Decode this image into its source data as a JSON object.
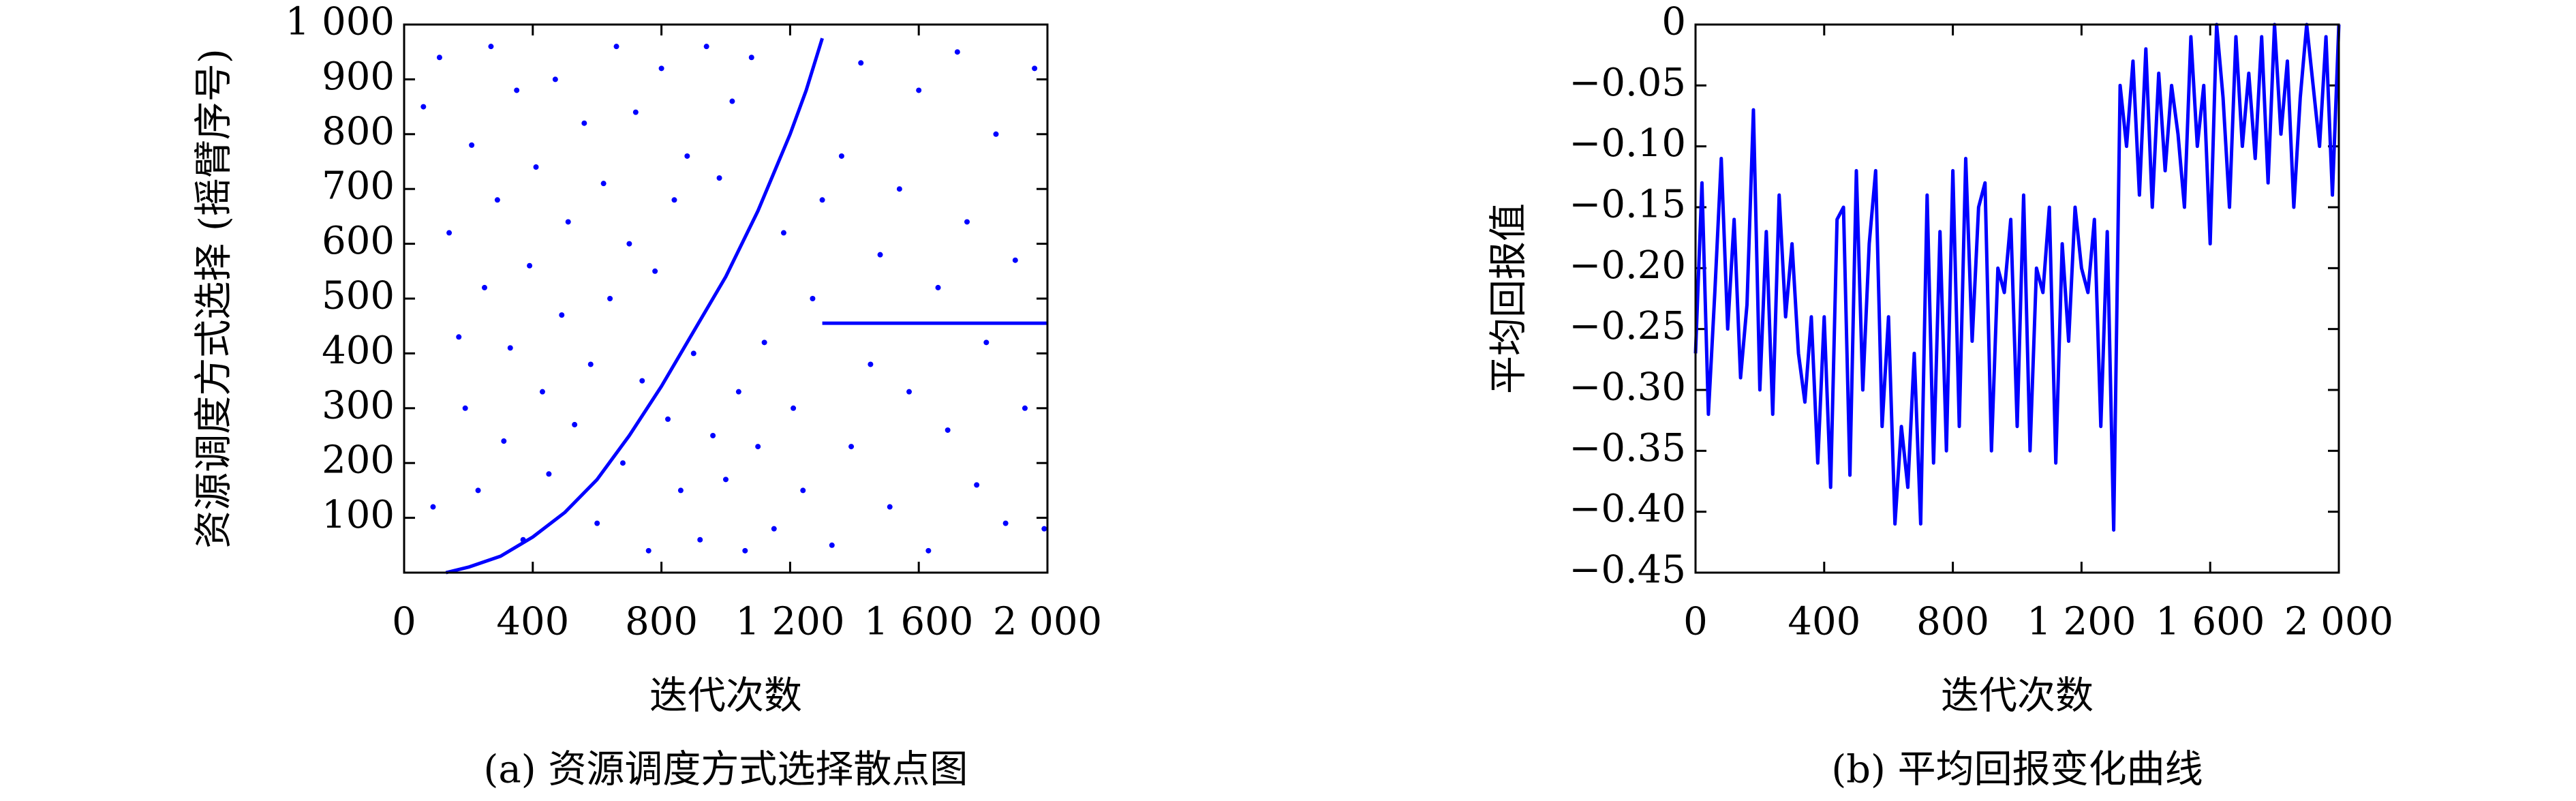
{
  "chart_data": [
    {
      "type": "scatter",
      "caption": "(a) 资源调度方式选择散点图",
      "xlabel": "迭代次数",
      "ylabel": "资源调度方式选择 (摇臂序号)",
      "xlim": [
        0,
        2000
      ],
      "xticks": [
        0,
        400,
        800,
        {
          "value": 1200,
          "label": "1 200"
        },
        {
          "value": 1600,
          "label": "1 600"
        },
        {
          "value": 2000,
          "label": "2 000"
        }
      ],
      "ylim": [
        0,
        1000
      ],
      "yticks": [
        100,
        200,
        300,
        400,
        500,
        600,
        700,
        800,
        900,
        {
          "value": 1000,
          "label": "1 000"
        }
      ],
      "series": [
        {
          "color": "#0000ff",
          "style": "dots",
          "x": [
            60,
            90,
            110,
            140,
            170,
            190,
            210,
            230,
            250,
            270,
            290,
            310,
            330,
            350,
            370,
            390,
            410,
            430,
            450,
            470,
            490,
            510,
            530,
            560,
            580,
            600,
            620,
            640,
            660,
            680,
            700,
            720,
            740,
            760,
            780,
            800,
            820,
            840,
            860,
            880,
            900,
            920,
            940,
            960,
            980,
            1000,
            1020,
            1040,
            1060,
            1080,
            1100,
            1120,
            1150,
            1180,
            1210,
            1240,
            1270,
            1300,
            1330,
            1360,
            1390,
            1420,
            1450,
            1480,
            1510,
            1540,
            1570,
            1600,
            1630,
            1660,
            1690,
            1720,
            1750,
            1780,
            1810,
            1840,
            1870,
            1900,
            1930,
            1960,
            1990
          ],
          "values": [
            850,
            120,
            940,
            620,
            430,
            300,
            780,
            150,
            520,
            960,
            680,
            240,
            410,
            880,
            60,
            560,
            740,
            330,
            180,
            900,
            470,
            640,
            270,
            820,
            380,
            90,
            710,
            500,
            960,
            200,
            600,
            840,
            350,
            40,
            550,
            920,
            280,
            680,
            150,
            760,
            400,
            60,
            960,
            250,
            720,
            170,
            860,
            330,
            40,
            940,
            230,
            420,
            80,
            620,
            300,
            150,
            500,
            680,
            50,
            760,
            230,
            930,
            380,
            580,
            120,
            700,
            330,
            880,
            40,
            520,
            260,
            950,
            640,
            160,
            420,
            800,
            90,
            570,
            300,
            920,
            80
          ]
        },
        {
          "color": "#0000ff",
          "style": "line",
          "x": [
            130,
            200,
            300,
            400,
            500,
            600,
            700,
            800,
            900,
            1000,
            1100,
            1200,
            1250,
            1300
          ],
          "values": [
            0,
            10,
            30,
            65,
            110,
            170,
            250,
            340,
            440,
            540,
            660,
            800,
            880,
            975
          ]
        },
        {
          "color": "#0000ff",
          "style": "line",
          "x": [
            1300,
            2000
          ],
          "values": [
            455,
            455
          ]
        }
      ]
    },
    {
      "type": "line",
      "caption": "(b) 平均回报变化曲线",
      "xlabel": "迭代次数",
      "ylabel": "平均回报值",
      "xlim": [
        0,
        2000
      ],
      "xticks": [
        0,
        400,
        800,
        {
          "value": 1200,
          "label": "1 200"
        },
        {
          "value": 1600,
          "label": "1 600"
        },
        {
          "value": 2000,
          "label": "2 000"
        }
      ],
      "ylim": [
        -0.45,
        0
      ],
      "yticks": [
        0,
        {
          "value": -0.05,
          "label": "−0.05"
        },
        {
          "value": -0.1,
          "label": "−0.10"
        },
        {
          "value": -0.15,
          "label": "−0.15"
        },
        {
          "value": -0.2,
          "label": "−0.20"
        },
        {
          "value": -0.25,
          "label": "−0.25"
        },
        {
          "value": -0.3,
          "label": "−0.30"
        },
        {
          "value": -0.35,
          "label": "−0.35"
        },
        {
          "value": -0.4,
          "label": "−0.40"
        },
        {
          "value": -0.45,
          "label": "−0.45"
        }
      ],
      "series": [
        {
          "color": "#0000ff",
          "x": [
            0,
            20,
            40,
            60,
            80,
            100,
            120,
            140,
            160,
            180,
            200,
            220,
            240,
            260,
            280,
            300,
            320,
            340,
            360,
            380,
            400,
            420,
            440,
            460,
            480,
            500,
            520,
            540,
            560,
            580,
            600,
            620,
            640,
            660,
            680,
            700,
            720,
            740,
            760,
            780,
            800,
            820,
            840,
            860,
            880,
            900,
            920,
            940,
            960,
            980,
            1000,
            1020,
            1040,
            1060,
            1080,
            1100,
            1120,
            1140,
            1160,
            1180,
            1200,
            1220,
            1240,
            1260,
            1280,
            1300,
            1320,
            1340,
            1360,
            1380,
            1400,
            1420,
            1440,
            1460,
            1480,
            1500,
            1520,
            1540,
            1560,
            1580,
            1600,
            1620,
            1640,
            1660,
            1680,
            1700,
            1720,
            1740,
            1760,
            1780,
            1800,
            1820,
            1840,
            1860,
            1880,
            1900,
            1920,
            1940,
            1960,
            1980,
            2000
          ],
          "values": [
            -0.27,
            -0.13,
            -0.32,
            -0.22,
            -0.11,
            -0.25,
            -0.16,
            -0.29,
            -0.23,
            -0.07,
            -0.3,
            -0.17,
            -0.32,
            -0.14,
            -0.24,
            -0.18,
            -0.27,
            -0.31,
            -0.24,
            -0.36,
            -0.24,
            -0.38,
            -0.16,
            -0.15,
            -0.37,
            -0.12,
            -0.3,
            -0.18,
            -0.12,
            -0.33,
            -0.24,
            -0.41,
            -0.33,
            -0.38,
            -0.27,
            -0.41,
            -0.14,
            -0.36,
            -0.17,
            -0.35,
            -0.12,
            -0.33,
            -0.11,
            -0.26,
            -0.15,
            -0.13,
            -0.35,
            -0.2,
            -0.22,
            -0.16,
            -0.33,
            -0.14,
            -0.35,
            -0.2,
            -0.22,
            -0.15,
            -0.36,
            -0.18,
            -0.26,
            -0.15,
            -0.2,
            -0.22,
            -0.16,
            -0.33,
            -0.17,
            -0.415,
            -0.05,
            -0.1,
            -0.03,
            -0.14,
            -0.02,
            -0.15,
            -0.04,
            -0.12,
            -0.05,
            -0.09,
            -0.15,
            -0.01,
            -0.1,
            -0.05,
            -0.18,
            0,
            -0.06,
            -0.15,
            -0.01,
            -0.1,
            -0.04,
            -0.11,
            -0.01,
            -0.13,
            0,
            -0.09,
            -0.03,
            -0.15,
            -0.06,
            0,
            -0.05,
            -0.1,
            -0.01,
            -0.14,
            0
          ]
        }
      ]
    }
  ]
}
